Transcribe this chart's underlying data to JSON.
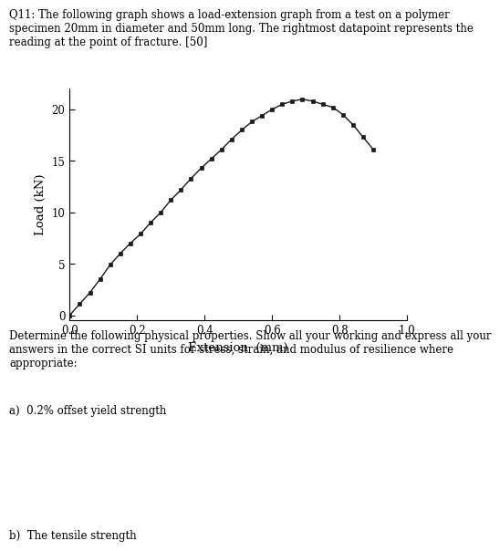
{
  "title_text": "Q11: The following graph shows a load-extension graph from a test on a polymer\nspecimen 20mm in diameter and 50mm long. The rightmost datapoint represents the\nreading at the point of fracture. [50]",
  "xlabel": "Extension  (mm)",
  "ylabel": "Load (kN)",
  "xlim": [
    0,
    1.0
  ],
  "ylim": [
    -0.5,
    22
  ],
  "xticks": [
    0,
    0.2,
    0.4,
    0.6,
    0.8,
    1.0
  ],
  "yticks": [
    0,
    5,
    10,
    15,
    20
  ],
  "x_data": [
    0.0,
    0.03,
    0.06,
    0.09,
    0.12,
    0.15,
    0.18,
    0.21,
    0.24,
    0.27,
    0.3,
    0.33,
    0.36,
    0.39,
    0.42,
    0.45,
    0.48,
    0.51,
    0.54,
    0.57,
    0.6,
    0.63,
    0.66,
    0.69,
    0.72,
    0.75,
    0.78,
    0.81,
    0.84,
    0.87,
    0.9
  ],
  "y_data": [
    0.0,
    1.1,
    2.2,
    3.5,
    4.9,
    6.0,
    7.0,
    7.9,
    9.0,
    10.0,
    11.2,
    12.2,
    13.3,
    14.3,
    15.2,
    16.1,
    17.1,
    18.0,
    18.8,
    19.4,
    20.0,
    20.5,
    20.8,
    21.0,
    20.8,
    20.5,
    20.2,
    19.5,
    18.5,
    17.3,
    16.1
  ],
  "line_color": "#1a1a1a",
  "marker": "s",
  "marker_size": 3,
  "bg_color": "#ffffff",
  "title_text_raw": "Q11: The following graph shows a load-extension graph from a test on a polymer specimen 20mm in diameter and 50mm long. The rightmost datapoint represents the reading at the point of fracture. [50]",
  "body_text_raw": "Determine the following physical properties. Show all your working and express all your answers in the correct SI units for stress, strain, and modulus of resilience where appropriate:",
  "part_a": "a)  0.2% offset yield strength",
  "part_b": "b)  The tensile strength",
  "title_fontsize": 8.5,
  "axis_fontsize": 9.5,
  "tick_fontsize": 8.5,
  "body_fontsize": 8.5
}
